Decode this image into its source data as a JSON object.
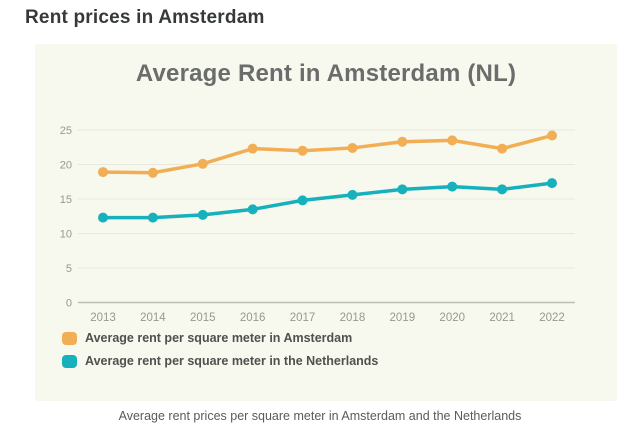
{
  "page": {
    "title": "Rent prices in Amsterdam",
    "caption": "Average rent prices per square meter in Amsterdam and the Netherlands"
  },
  "chart_data": {
    "type": "line",
    "title": "Average Rent in Amsterdam (NL)",
    "categories": [
      "2013",
      "2014",
      "2015",
      "2016",
      "2017",
      "2018",
      "2019",
      "2020",
      "2021",
      "2022"
    ],
    "series": [
      {
        "name": "Average rent per square meter in Amsterdam",
        "color": "#F2AE55",
        "values": [
          18.9,
          18.8,
          20.1,
          22.3,
          22.0,
          22.4,
          23.3,
          23.5,
          22.3,
          24.2
        ]
      },
      {
        "name": "Average rent per square meter in the Netherlands",
        "color": "#16B1BC",
        "values": [
          12.3,
          12.3,
          12.7,
          13.5,
          14.8,
          15.6,
          16.4,
          16.8,
          16.4,
          17.3
        ]
      }
    ],
    "ylim": [
      0,
      25
    ],
    "yticks": [
      0,
      5,
      10,
      15,
      20,
      25
    ],
    "grid": true,
    "legend_position": "bottom-left",
    "colors": {
      "card_background": "#F7F8EE",
      "gridline": "#E8E8DE",
      "axis_line": "#BCBDB3",
      "tick_label": "#97988F"
    }
  }
}
